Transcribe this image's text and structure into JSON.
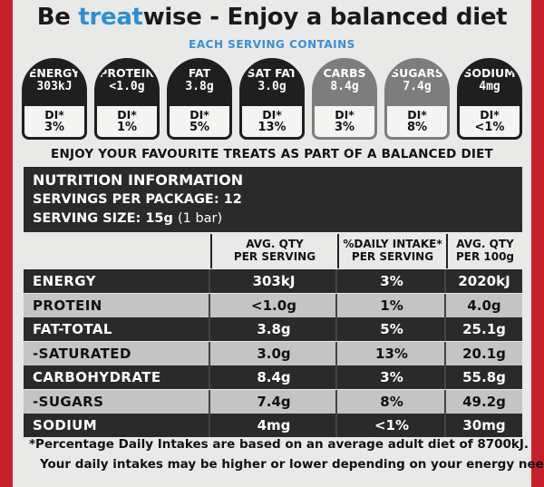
{
  "header": {
    "be": "Be",
    "treat": "treat",
    "rest": "wise - Enjoy a balanced diet"
  },
  "each_serving": "EACH SERVING CONTAINS",
  "gda": [
    {
      "name": "ENERGY",
      "value": "303kJ",
      "di": "DI*",
      "pct": "3%",
      "grey": false
    },
    {
      "name": "PROTEIN",
      "value": "<1.0g",
      "di": "DI*",
      "pct": "1%",
      "grey": false
    },
    {
      "name": "FAT",
      "value": "3.8g",
      "di": "DI*",
      "pct": "5%",
      "grey": false
    },
    {
      "name": "SAT FAT",
      "value": "3.0g",
      "di": "DI*",
      "pct": "13%",
      "grey": false
    },
    {
      "name": "CARBS",
      "value": "8.4g",
      "di": "DI*",
      "pct": "3%",
      "grey": true
    },
    {
      "name": "SUGARS",
      "value": "7.4g",
      "di": "DI*",
      "pct": "8%",
      "grey": true
    },
    {
      "name": "SODIUM",
      "value": "4mg",
      "di": "DI*",
      "pct": "<1%",
      "grey": false
    }
  ],
  "enjoy": "ENJOY YOUR FAVOURITE TREATS AS PART OF A BALANCED DIET",
  "nutrition": {
    "title": "NUTRITION INFORMATION",
    "servings": "SERVINGS PER PACKAGE: 12",
    "serving_size": "SERVING SIZE: 15g",
    "serving_note": "(1 bar)"
  },
  "columns": [
    {
      "line1": "AVG. QTY",
      "line2": "PER SERVING"
    },
    {
      "line1": "%DAILY INTAKE*",
      "line2": "PER SERVING"
    },
    {
      "line1": "AVG. QTY",
      "line2": "PER 100g"
    }
  ],
  "rows": [
    {
      "name": "ENERGY",
      "per_serving": "303kJ",
      "daily": "3%",
      "per_100g": "2020kJ",
      "style": "dark"
    },
    {
      "name": "PROTEIN",
      "per_serving": "<1.0g",
      "daily": "1%",
      "per_100g": "4.0g",
      "style": "light"
    },
    {
      "name": "FAT-TOTAL",
      "per_serving": "3.8g",
      "daily": "5%",
      "per_100g": "25.1g",
      "style": "dark"
    },
    {
      "name": "-SATURATED",
      "per_serving": "3.0g",
      "daily": "13%",
      "per_100g": "20.1g",
      "style": "light"
    },
    {
      "name": "CARBOHYDRATE",
      "per_serving": "8.4g",
      "daily": "3%",
      "per_100g": "55.8g",
      "style": "dark"
    },
    {
      "name": "-SUGARS",
      "per_serving": "7.4g",
      "daily": "8%",
      "per_100g": "49.2g",
      "style": "light"
    },
    {
      "name": "SODIUM",
      "per_serving": "4mg",
      "daily": "<1%",
      "per_100g": "30mg",
      "style": "dark"
    }
  ],
  "footnote": {
    "line1": "*Percentage Daily Intakes are based on an average adult diet of 8700kJ.",
    "line2": "Your daily intakes may be higher or lower depending on your energy needs."
  },
  "colors": {
    "background_red": "#c8202a",
    "label": "#e9e9e7",
    "dark": "#2a2a2a",
    "light_row": "#c4c4c4",
    "treat_blue": "#2c8fd6"
  }
}
